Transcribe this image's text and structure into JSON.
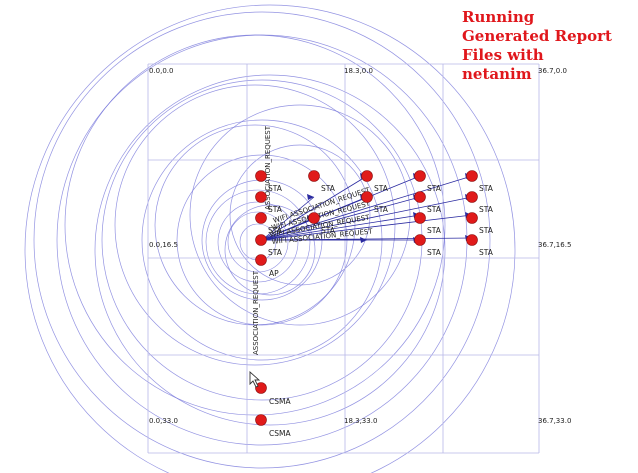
{
  "overlay": {
    "lines": [
      "Running",
      "Generated Report",
      "Files with",
      "netanim"
    ],
    "color": "#e0171c"
  },
  "grid": {
    "corner_labels": {
      "tl": "0.0,0.0",
      "tm": "18.3,0.0",
      "tr": "36.7,0.0",
      "ml": "0.0,16.5",
      "mr": "36.7,16.5",
      "bl": "0.0,33.0",
      "bm": "18.3,33.0",
      "br": "36.7,33.0"
    }
  },
  "nodes": {
    "sta_label": "STA",
    "ap_label": "AP",
    "csma_label": "CSMA",
    "node_color": "#e01a1a",
    "circle_color": "#6f6fd8"
  },
  "packets": {
    "vertical_label": "ASSOCIATION_REQUEST",
    "rows": [
      "WIFI ASSOCIATION_REQUEST",
      "WIFI ASSOCIATION_REQUEST",
      "WIFI ASSOCIATION_REQUEST",
      "WIFI ASSOCIATION_REQUEST"
    ],
    "line_color": "#2a2aa0"
  }
}
